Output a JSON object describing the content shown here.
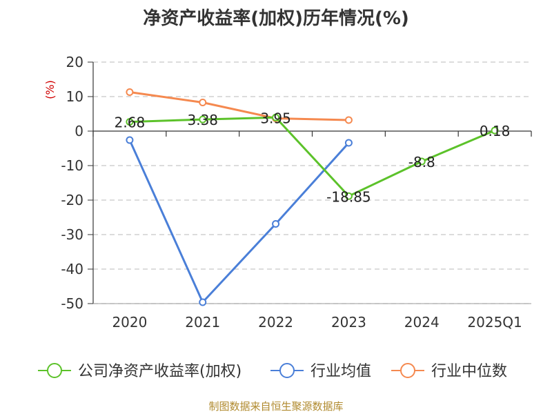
{
  "title": "净资产收益率(加权)历年情况(%)",
  "source": "制图数据来自恒生聚源数据库",
  "chart_data": {
    "type": "line",
    "title": "净资产收益率(加权)历年情况(%)",
    "ylabel": "(%)",
    "categories": [
      "2020",
      "2021",
      "2022",
      "2023",
      "2024",
      "2025Q1"
    ],
    "ylim": [
      -50,
      20
    ],
    "yticks": [
      20,
      10,
      0,
      -10,
      -20,
      -30,
      -40,
      -50
    ],
    "grid": true,
    "legend_position": "bottom",
    "series": [
      {
        "name": "公司净资产收益率(加权)",
        "color": "#5cc22a",
        "values": [
          2.68,
          3.38,
          3.95,
          -18.85,
          -8.8,
          0.18
        ],
        "labels": [
          "2.68",
          "3.38",
          "3.95",
          "-18.85",
          "-8.8",
          "0.18"
        ]
      },
      {
        "name": "行业均值",
        "color": "#4a7fd8",
        "values": [
          -2.6,
          -49.6,
          -26.9,
          -3.4,
          null,
          null
        ]
      },
      {
        "name": "行业中位数",
        "color": "#f5894f",
        "values": [
          11.3,
          8.3,
          3.7,
          3.2,
          null,
          null
        ]
      }
    ]
  }
}
